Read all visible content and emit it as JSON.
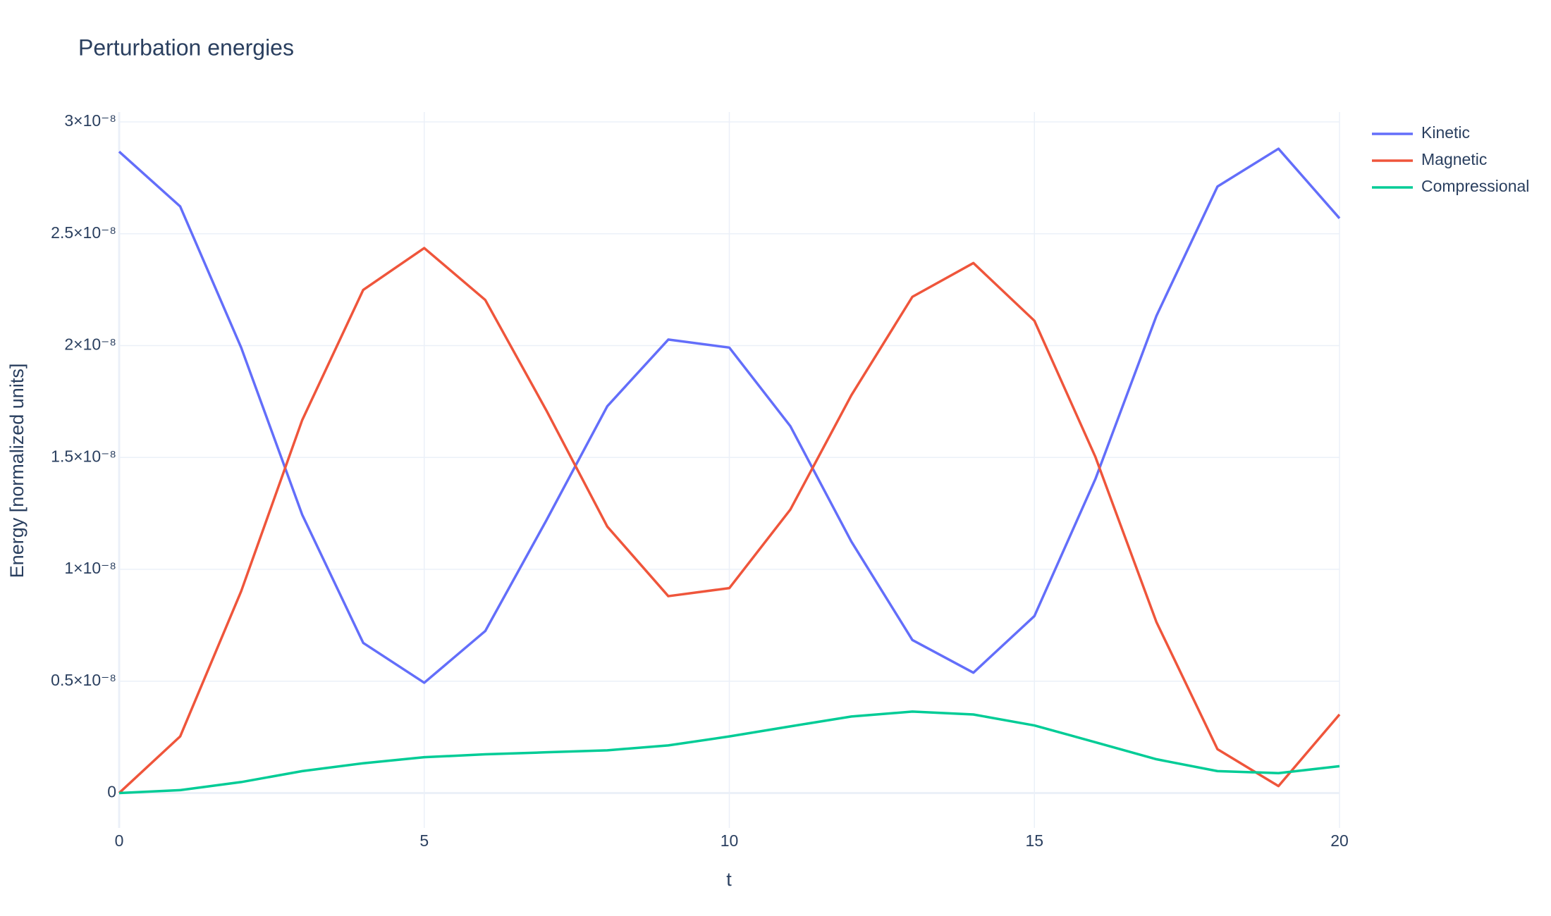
{
  "chart_data": {
    "type": "line",
    "title": "Perturbation energies",
    "x_label": "t",
    "y_label": "Energy [normalized units]",
    "x": [
      0,
      1,
      2,
      3,
      4,
      5,
      6,
      7,
      8,
      9,
      10,
      11,
      12,
      13,
      14,
      15,
      16,
      17,
      18,
      19,
      20
    ],
    "series": [
      {
        "name": "Kinetic",
        "color": "#636efa",
        "values": [
          2.867e-08,
          2.622e-08,
          1.991e-08,
          1.244e-08,
          6.71e-09,
          4.93e-09,
          7.24e-09,
          1.218e-08,
          1.729e-08,
          2.027e-08,
          1.991e-08,
          1.64e-08,
          1.124e-08,
          6.84e-09,
          5.38e-09,
          7.91e-09,
          1.404e-08,
          2.133e-08,
          2.711e-08,
          2.88e-08,
          2.569e-08
        ]
      },
      {
        "name": "Magnetic",
        "color": "#ef553b",
        "values": [
          0,
          2.53e-09,
          9.02e-09,
          1.667e-08,
          2.249e-08,
          2.436e-08,
          2.204e-08,
          1.711e-08,
          1.191e-08,
          8.8e-09,
          9.16e-09,
          1.267e-08,
          1.778e-08,
          2.218e-08,
          2.369e-08,
          2.111e-08,
          1.502e-08,
          7.64e-09,
          1.96e-09,
          3.1e-10,
          3.51e-09
        ]
      },
      {
        "name": "Compressional",
        "color": "#00cc96",
        "values": [
          0,
          1.3e-10,
          4.9e-10,
          9.8e-10,
          1.33e-09,
          1.6e-09,
          1.73e-09,
          1.82e-09,
          1.91e-09,
          2.13e-09,
          2.53e-09,
          2.98e-09,
          3.42e-09,
          3.64e-09,
          3.51e-09,
          3.02e-09,
          2.27e-09,
          1.51e-09,
          9.8e-10,
          8.9e-10,
          1.2e-09
        ]
      }
    ],
    "xlim": [
      0,
      20
    ],
    "xticks": [
      0,
      5,
      10,
      15,
      20
    ],
    "ylim": [
      -1.56e-09,
      3.044e-08
    ],
    "yticks": [
      0,
      {
        "value": 5e-09,
        "label": "0.5×10⁻⁸"
      },
      {
        "value": 1e-08,
        "label": "1×10⁻⁸"
      },
      {
        "value": 1.5e-08,
        "label": "1.5×10⁻⁸"
      },
      {
        "value": 2e-08,
        "label": "2×10⁻⁸"
      },
      {
        "value": 2.5e-08,
        "label": "2.5×10⁻⁸"
      },
      {
        "value": 3e-08,
        "label": "3×10⁻⁸"
      }
    ],
    "grid": true,
    "legend": "top-right"
  }
}
